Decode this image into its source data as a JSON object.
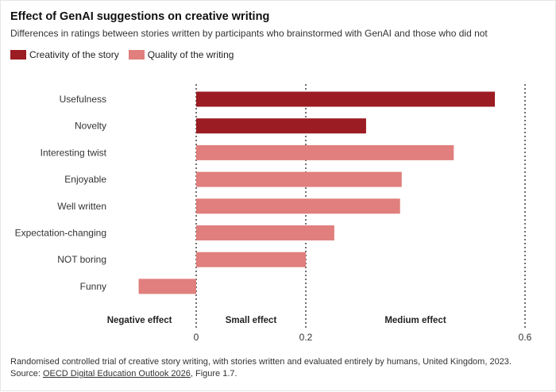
{
  "title": "Effect of GenAI suggestions on creative writing",
  "subtitle": "Differences in ratings between stories written by participants who brainstormed with GenAI and those who did not",
  "legend": [
    {
      "label": "Creativity of the story",
      "color": "#9b1c22"
    },
    {
      "label": "Quality of the writing",
      "color": "#e07f7d"
    }
  ],
  "footer": {
    "note": "Randomised controlled trial of creative story writing, with stories written and evaluated entirely by humans, United Kingdom, 2023.",
    "source_prefix": "Source: ",
    "source_link": "OECD Digital Education Outlook 2026",
    "source_suffix": ", Figure 1.7."
  },
  "chart_data": {
    "type": "bar",
    "orientation": "horizontal",
    "categories": [
      "Usefulness",
      "Novelty",
      "Interesting twist",
      "Enjoyable",
      "Well written",
      "Expectation-changing",
      "NOT boring",
      "Funny"
    ],
    "values": [
      0.545,
      0.31,
      0.47,
      0.375,
      0.372,
      0.252,
      0.2,
      -0.105
    ],
    "series_group": [
      "Creativity of the story",
      "Creativity of the story",
      "Quality of the writing",
      "Quality of the writing",
      "Quality of the writing",
      "Quality of the writing",
      "Quality of the writing",
      "Quality of the writing"
    ],
    "xlim": [
      -0.12,
      0.6
    ],
    "ticks": [
      "0",
      "0.2",
      "0.6"
    ],
    "tick_values": [
      0,
      0.2,
      0.6
    ],
    "zones": [
      {
        "label": "Negative effect",
        "from": -0.12,
        "to": 0
      },
      {
        "label": "Small effect",
        "from": 0,
        "to": 0.2
      },
      {
        "label": "Medium effect",
        "from": 0.2,
        "to": 0.6
      }
    ],
    "grid": false,
    "legend_position": "top-left"
  }
}
